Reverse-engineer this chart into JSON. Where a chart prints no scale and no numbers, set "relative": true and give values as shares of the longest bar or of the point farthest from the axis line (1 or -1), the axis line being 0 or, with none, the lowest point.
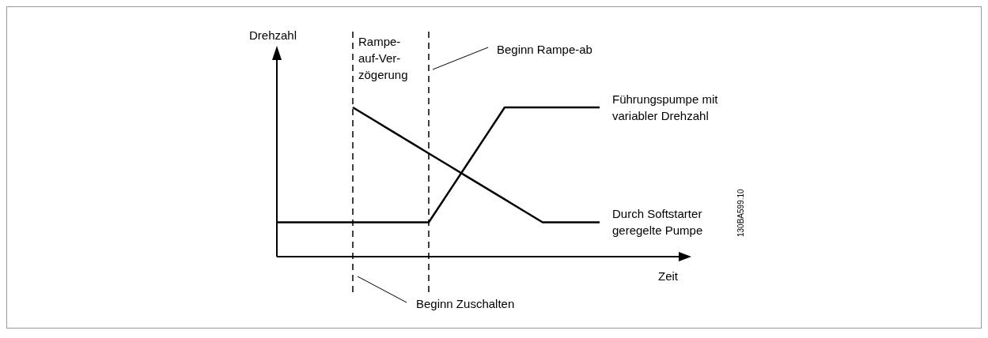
{
  "chart_data": {
    "type": "line",
    "relative": true,
    "xlabel": "Zeit",
    "legend": false,
    "marker": "none",
    "line_style": "solid",
    "categories": [
      null,
      null,
      null,
      null,
      null,
      null,
      null,
      null,
      null,
      null,
      null,
      null,
      null,
      null,
      null,
      null,
      null,
      null
    ],
    "series": [
      {
        "name": "Führungspumpe mit\nvariabler Drehzahl",
        "color": "#000000",
        "values": [
          0.23,
          0.23,
          0.23,
          0.23,
          0.23,
          0.23,
          0.23,
          0.23,
          0.23,
          0.4225,
          0.615,
          0.8075,
          1,
          1,
          1,
          1,
          1,
          1
        ]
      },
      {
        "name": "Durch Softstarter\ngeregelte Pumpe",
        "color": "#000000",
        "values": [
          null,
          null,
          null,
          null,
          1,
          0.923,
          0.846,
          0.769,
          0.692,
          0.615,
          0.538,
          0.461,
          0.384,
          0.307,
          0.23,
          0.23,
          0.23,
          0.23
        ]
      }
    ],
    "annotations": [
      "Rampe-\nauf-Ver-\nzögerung",
      "130BA599.10",
      "Beginn Zuschalten",
      "Beginn Rampe-ab",
      "Drehzahl"
    ]
  }
}
